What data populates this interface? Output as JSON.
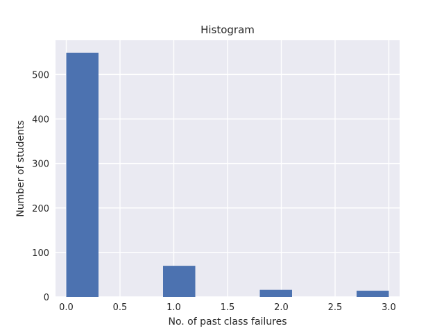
{
  "chart_data": {
    "type": "bar",
    "title": "Histogram",
    "xlabel": "No. of past class failures",
    "ylabel": "Number of students",
    "xlim": [
      -0.1,
      3.1
    ],
    "ylim": [
      0,
      577
    ],
    "xticks": [
      0.0,
      0.5,
      1.0,
      1.5,
      2.0,
      2.5,
      3.0
    ],
    "xtick_labels": [
      "0.0",
      "0.5",
      "1.0",
      "1.5",
      "2.0",
      "2.5",
      "3.0"
    ],
    "yticks": [
      0,
      100,
      200,
      300,
      400,
      500
    ],
    "ytick_labels": [
      "0",
      "100",
      "200",
      "300",
      "400",
      "500"
    ],
    "bins": [
      {
        "x0": 0.0,
        "x1": 0.3,
        "count": 549
      },
      {
        "x0": 0.3,
        "x1": 0.6,
        "count": 0
      },
      {
        "x0": 0.6,
        "x1": 0.9,
        "count": 0
      },
      {
        "x0": 0.9,
        "x1": 1.2,
        "count": 70
      },
      {
        "x0": 1.2,
        "x1": 1.5,
        "count": 0
      },
      {
        "x0": 1.5,
        "x1": 1.8,
        "count": 0
      },
      {
        "x0": 1.8,
        "x1": 2.1,
        "count": 16
      },
      {
        "x0": 2.1,
        "x1": 2.4,
        "count": 0
      },
      {
        "x0": 2.4,
        "x1": 2.7,
        "count": 0
      },
      {
        "x0": 2.7,
        "x1": 3.0,
        "count": 14
      }
    ],
    "bar_color": "#4c72b0",
    "background_color": "#eaeaf2",
    "grid": true,
    "grid_color": "#ffffff",
    "legend": "none"
  }
}
